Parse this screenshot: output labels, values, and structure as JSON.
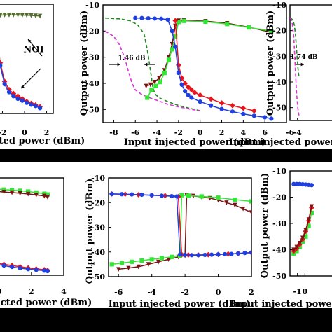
{
  "colors": {
    "red": "#e8141c",
    "green": "#33e636",
    "blue": "#1f3fe0",
    "brown": "#7a1414",
    "olive": "#556b2f",
    "dashGreen": "#1f8a1f",
    "magenta": "#e032d8",
    "band": "#000000"
  },
  "chart_data": [
    {
      "id": "top-left",
      "type": "line",
      "xlabel": "Input injected power (dBm)",
      "ylabel": "",
      "xlim": [
        -2.6,
        2.6
      ],
      "ylim": [
        -52,
        -11
      ],
      "xticks": [
        {
          "v": -2,
          "t": "-2"
        },
        {
          "v": 0,
          "t": "0"
        },
        {
          "v": 2,
          "t": "2"
        }
      ],
      "yticks": [],
      "annotations": [
        {
          "text": "NOI",
          "x": -0.1,
          "y": -29
        }
      ],
      "series": [
        {
          "color": "olive",
          "marker": "tri",
          "dash": false,
          "x": [
            -2.6,
            -2.2,
            -1.8,
            -1.4,
            -1.0,
            -0.6,
            -0.2,
            0.2,
            0.6,
            1.0,
            1.4
          ],
          "y": [
            -15.2,
            -15.1,
            -15.0,
            -15.0,
            -15.0,
            -15.0,
            -15.1,
            -15.1,
            -15.2,
            -15.3,
            -15.4
          ]
        },
        {
          "color": "red",
          "marker": "diamond",
          "dash": false,
          "x": [
            -2.6,
            -2.2,
            -1.8,
            -1.4,
            -1.0,
            -0.6,
            -0.2,
            0.2,
            0.6,
            1.0,
            1.4
          ],
          "y": [
            -20,
            -33,
            -40,
            -43,
            -44.5,
            -45.5,
            -46.5,
            -47.5,
            -48.2,
            -48.8,
            -49.5
          ]
        },
        {
          "color": "blue",
          "marker": "circle",
          "dash": false,
          "x": [
            -2.6,
            -2.2,
            -1.8,
            -1.4,
            -1.0,
            -0.6,
            -0.2,
            0.2,
            0.6,
            1.0,
            1.4
          ],
          "y": [
            -21,
            -34,
            -41,
            -44,
            -45.5,
            -46.5,
            -47.2,
            -48,
            -48.7,
            -49.2,
            -50
          ]
        }
      ]
    },
    {
      "id": "top-middle",
      "type": "line",
      "xlabel": "Input injected power (dBm)",
      "ylabel": "Output power (dBm)",
      "xlim": [
        -9,
        8
      ],
      "ylim": [
        -55,
        -10
      ],
      "xticks": [
        {
          "v": -8,
          "t": "-8"
        },
        {
          "v": -6,
          "t": "-6"
        },
        {
          "v": -4,
          "t": "-4"
        },
        {
          "v": -2,
          "t": "-2"
        },
        {
          "v": 0,
          "t": "0"
        },
        {
          "v": 2,
          "t": "2"
        },
        {
          "v": 4,
          "t": "4"
        },
        {
          "v": 6,
          "t": "6"
        }
      ],
      "yticks": [
        {
          "v": -10,
          "t": "-10"
        },
        {
          "v": -20,
          "t": "-20"
        },
        {
          "v": -30,
          "t": "-30"
        },
        {
          "v": -40,
          "t": "-40"
        },
        {
          "v": -50,
          "t": "-50"
        }
      ],
      "annotations": [
        {
          "text": "1.46 dB",
          "x": -7.6,
          "y": -31
        }
      ],
      "series": [
        {
          "color": "dashGreen",
          "marker": "none",
          "dash": true,
          "x": [
            -8.8,
            -7.5,
            -6.5,
            -5.8,
            -5.2,
            -4.9,
            -4.6,
            -4.4,
            -4.2,
            -3.8,
            -3.0,
            -2.0,
            -1.0,
            0.0
          ],
          "y": [
            -15,
            -15.3,
            -16,
            -17.5,
            -21,
            -27,
            -35,
            -41,
            -44,
            -45.5,
            -47,
            -48.5,
            -49.5,
            -50.5
          ]
        },
        {
          "color": "magenta",
          "marker": "none",
          "dash": true,
          "x": [
            -8.8,
            -8.0,
            -7.5,
            -7.0,
            -6.6,
            -6.3,
            -6.0,
            -5.5,
            -5.0,
            -4.0,
            -3.0,
            -2.0,
            -1.0,
            0.0
          ],
          "y": [
            -20,
            -22,
            -25,
            -30,
            -36,
            -40,
            -42.5,
            -44,
            -45,
            -46.5,
            -48,
            -49,
            -49.8,
            -50.5
          ]
        },
        {
          "color": "brown",
          "marker": "tri",
          "dash": false,
          "x": [
            -5.0,
            -4.6,
            -4.2,
            -3.8,
            -3.3,
            -2.9,
            -2.6,
            -2.3,
            -2.0,
            -1.5,
            0.5,
            2.5,
            4.5,
            6.6
          ],
          "y": [
            -41,
            -40.5,
            -39.5,
            -38,
            -35,
            -30,
            -25,
            -18,
            -16,
            -15.9,
            -16.2,
            -17,
            -18.5,
            -20.5
          ]
        },
        {
          "color": "green",
          "marker": "square",
          "dash": false,
          "x": [
            -4.9,
            -4.5,
            -4.1,
            -3.7,
            -3.3,
            -2.9,
            -2.6,
            -2.3,
            -2.0,
            -1.5,
            0.5,
            2.5,
            4.5,
            6.6
          ],
          "y": [
            -45.5,
            -42.5,
            -41,
            -39.5,
            -36,
            -31,
            -27,
            -22,
            -16.5,
            -16.1,
            -16.4,
            -17.3,
            -18.6,
            -20
          ]
        },
        {
          "color": "red",
          "marker": "diamond",
          "dash": false,
          "x": [
            -2.3,
            -2.0,
            -1.7,
            -1.4,
            -1.1,
            -0.8,
            -0.5,
            0.0,
            1.0,
            2.0,
            3.0,
            4.0,
            5.0
          ],
          "y": [
            -16,
            -33,
            -38,
            -40,
            -41.5,
            -42.5,
            -43.5,
            -44.5,
            -46,
            -47.5,
            -48.5,
            -49.5,
            -50.5
          ]
        },
        {
          "color": "blue",
          "marker": "circle",
          "dash": false,
          "x": [
            -6.0,
            -5.4,
            -4.8,
            -4.2,
            -3.6,
            -3.0,
            -2.6,
            -2.3,
            -2.0,
            -1.7,
            -1.4,
            -1.1,
            -0.8,
            0.0,
            1.0,
            2.0,
            3.0,
            4.0,
            5.0,
            6.0,
            6.6
          ],
          "y": [
            -15,
            -15,
            -15.1,
            -15.2,
            -15.3,
            -15.6,
            -20,
            -26,
            -36,
            -40.5,
            -43,
            -44.5,
            -45.5,
            -47,
            -48.5,
            -49.8,
            -50.8,
            -51.7,
            -52.4,
            -53,
            -53.5
          ]
        }
      ]
    },
    {
      "id": "top-right",
      "type": "line",
      "xlabel": "Input injected power (dBm)",
      "ylabel": "Output power (dBm)",
      "xlim": [
        -6,
        6
      ],
      "ylim": [
        -55,
        -10
      ],
      "xticks": [
        {
          "v": -6,
          "t": "-6"
        },
        {
          "v": -4,
          "t": "-4"
        }
      ],
      "yticks": [
        {
          "v": -10,
          "t": "-10"
        },
        {
          "v": -20,
          "t": "-20"
        },
        {
          "v": -30,
          "t": "-30"
        },
        {
          "v": -40,
          "t": "-40"
        },
        {
          "v": -50,
          "t": "-50"
        }
      ],
      "annotations": [
        {
          "text": "1.74 dB",
          "x": -5.9,
          "y": -31
        }
      ],
      "series": [
        {
          "color": "dashGreen",
          "marker": "none",
          "dash": true,
          "x": [
            -5.8,
            -5.2,
            -4.8,
            -4.5,
            -4.2,
            -3.9,
            -3.6
          ],
          "y": [
            -15,
            -16,
            -18,
            -22,
            -28,
            -34,
            -38
          ]
        },
        {
          "color": "magenta",
          "marker": "none",
          "dash": true,
          "x": [
            -5.9,
            -5.4,
            -5.0,
            -4.7,
            -4.5,
            -4.2,
            -3.9,
            -3.6
          ],
          "y": [
            -15,
            -17,
            -22,
            -30,
            -37,
            -45,
            -50,
            -53
          ]
        }
      ]
    },
    {
      "id": "bottom-left",
      "type": "line",
      "xlabel": "Input injected power (dBm)",
      "ylabel": "",
      "xlim": [
        -0.2,
        4
      ],
      "ylim": [
        -50,
        -10
      ],
      "xticks": [
        {
          "v": 0,
          "t": "0"
        },
        {
          "v": 2,
          "t": "2"
        },
        {
          "v": 4,
          "t": "4"
        }
      ],
      "yticks": [],
      "annotations": [],
      "series": [
        {
          "color": "green",
          "marker": "square",
          "dash": false,
          "x": [
            -0.2,
            0.3,
            0.8,
            1.3,
            1.8,
            2.3,
            2.8,
            3.0
          ],
          "y": [
            -14.5,
            -14.8,
            -15.0,
            -15.3,
            -15.6,
            -16.0,
            -16.5,
            -16.8
          ]
        },
        {
          "color": "brown",
          "marker": "tri",
          "dash": false,
          "x": [
            -0.2,
            0.3,
            0.8,
            1.3,
            1.8,
            2.3,
            2.8,
            3.0
          ],
          "y": [
            -15.5,
            -15.8,
            -16.0,
            -16.3,
            -16.6,
            -17.0,
            -17.4,
            -17.8
          ]
        },
        {
          "color": "red",
          "marker": "diamond",
          "dash": false,
          "x": [
            -0.2,
            0.3,
            0.8,
            1.3,
            1.8,
            2.3,
            2.8,
            3.0
          ],
          "y": [
            -45,
            -45.5,
            -46,
            -46.5,
            -47,
            -47.4,
            -47.7,
            -48
          ]
        },
        {
          "color": "blue",
          "marker": "circle",
          "dash": false,
          "x": [
            -0.2,
            0.3,
            0.8,
            1.3,
            1.8,
            2.3,
            2.8,
            3.0
          ],
          "y": [
            -45.5,
            -46,
            -46.6,
            -47.1,
            -47.5,
            -47.8,
            -48.1,
            -48.3
          ]
        }
      ]
    },
    {
      "id": "bottom-middle",
      "type": "line",
      "xlabel": "Input injected power (dBm)",
      "ylabel": "Output power (dBm)",
      "xlim": [
        -6.6,
        2
      ],
      "ylim": [
        -50,
        -10
      ],
      "xticks": [
        {
          "v": -6,
          "t": "-6"
        },
        {
          "v": -4,
          "t": "-4"
        },
        {
          "v": -2,
          "t": "-2"
        },
        {
          "v": 0,
          "t": "0"
        },
        {
          "v": 2,
          "t": "2"
        }
      ],
      "yticks": [
        {
          "v": -10,
          "t": "-10"
        },
        {
          "v": -20,
          "t": "-20"
        },
        {
          "v": -30,
          "t": "-30"
        },
        {
          "v": -40,
          "t": "-40"
        },
        {
          "v": -50,
          "t": "-50"
        }
      ],
      "annotations": [],
      "series": [
        {
          "color": "brown",
          "marker": "tri",
          "dash": false,
          "x": [
            -6.0,
            -5.4,
            -4.8,
            -4.2,
            -3.6,
            -3.0,
            -2.4,
            -2.0,
            -1.9,
            -1.5,
            -1.0,
            -0.5,
            0.0,
            0.5,
            1.0,
            1.5,
            2.0
          ],
          "y": [
            -47,
            -46.5,
            -46,
            -45,
            -44,
            -43,
            -42,
            -41.5,
            -17,
            -17.3,
            -17.7,
            -18.2,
            -19,
            -20,
            -21,
            -22.5,
            -24
          ]
        },
        {
          "color": "green",
          "marker": "square",
          "dash": false,
          "x": [
            -6.4,
            -5.8,
            -5.2,
            -4.6,
            -4.0,
            -3.4,
            -2.8,
            -2.3,
            -2.2,
            -1.8,
            -1.0,
            0.0,
            1.0,
            2.0
          ],
          "y": [
            -45,
            -44.5,
            -44,
            -43.5,
            -43,
            -42.5,
            -42,
            -41.5,
            -17,
            -17.2,
            -17.5,
            -18,
            -18.8,
            -19.5
          ]
        },
        {
          "color": "red",
          "marker": "diamond",
          "dash": false,
          "x": [
            -6.4,
            -5.6,
            -4.8,
            -4.0,
            -3.2,
            -2.4,
            -2.2,
            -1.8,
            -1.2,
            -0.6,
            0.0,
            0.6,
            1.2,
            2.0
          ],
          "y": [
            -16.5,
            -16.6,
            -16.8,
            -17,
            -17.2,
            -17.6,
            -41,
            -41.2,
            -41.2,
            -41.1,
            -41,
            -40.8,
            -40.6,
            -40.3
          ]
        },
        {
          "color": "blue",
          "marker": "circle",
          "dash": false,
          "x": [
            -6.4,
            -5.8,
            -5.2,
            -4.6,
            -4.0,
            -3.4,
            -2.8,
            -2.5,
            -2.3,
            -2.0,
            -1.6,
            -1.2,
            -0.8,
            -0.4,
            0.0,
            0.4,
            0.8,
            1.2,
            1.6,
            2.0
          ],
          "y": [
            -16.5,
            -16.6,
            -16.7,
            -16.8,
            -17,
            -17.2,
            -17.4,
            -17.5,
            -41,
            -41.2,
            -41.3,
            -41.3,
            -41.2,
            -41.1,
            -41,
            -40.9,
            -40.8,
            -40.6,
            -40.4,
            -40.2
          ]
        }
      ]
    },
    {
      "id": "bottom-right",
      "type": "line",
      "xlabel": "Input injected power (dBm)",
      "ylabel": "Output power (dBm)",
      "xlim": [
        -2,
        4
      ],
      "ylim": [
        -50,
        -10
      ],
      "xticks": [
        {
          "v": -1,
          "t": "-1"
        },
        {
          "v": 0,
          "t": "0"
        }
      ],
      "yticks": [
        {
          "v": -10,
          "t": "-10"
        },
        {
          "v": -20,
          "t": "-20"
        },
        {
          "v": -30,
          "t": "-30"
        },
        {
          "v": -40,
          "t": "-40"
        },
        {
          "v": -50,
          "t": "-50"
        }
      ],
      "annotations": [],
      "series": [
        {
          "color": "blue",
          "marker": "circle",
          "dash": false,
          "x": [
            -1.5,
            -1.1,
            -0.7,
            -0.3,
            0.1,
            0.5,
            0.9
          ],
          "y": [
            -15,
            -15,
            -15,
            -15.1,
            -15.2,
            -15.3,
            -15.4
          ]
        },
        {
          "color": "green",
          "marker": "square",
          "dash": false,
          "x": [
            -1.5,
            -1.1,
            -0.7,
            -0.3,
            0.1,
            0.5,
            0.9
          ],
          "y": [
            -41.5,
            -40.5,
            -39,
            -37,
            -35,
            -31,
            -26
          ]
        },
        {
          "color": "red",
          "marker": "diamond",
          "dash": false,
          "x": [
            -1.5,
            -1.1,
            -0.7,
            -0.3,
            0.1,
            0.5,
            0.9
          ],
          "y": [
            -40.5,
            -39.5,
            -38,
            -36,
            -33,
            -29,
            -24
          ]
        },
        {
          "color": "brown",
          "marker": "tri",
          "dash": false,
          "x": [
            -1.5,
            -1.1,
            -0.7,
            -0.3,
            0.1,
            0.5,
            0.9
          ],
          "y": [
            -40,
            -39,
            -37.5,
            -35.5,
            -32.5,
            -28.5,
            -23.5
          ]
        }
      ]
    }
  ]
}
